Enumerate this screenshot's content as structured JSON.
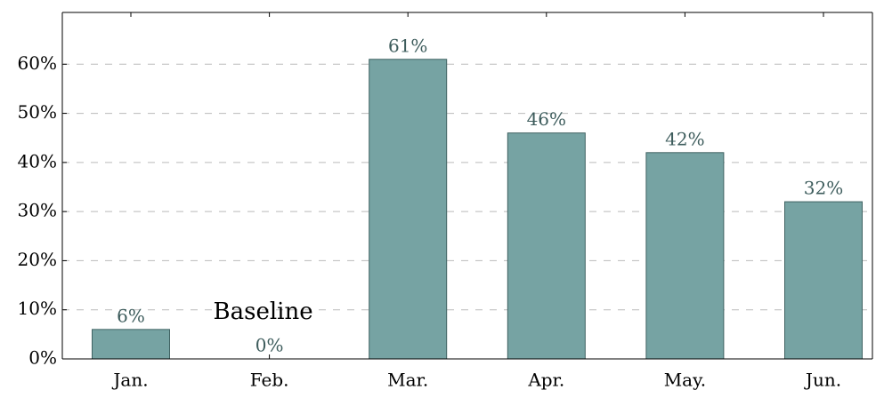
{
  "chart_data": {
    "type": "bar",
    "categories": [
      "Jan.",
      "Feb.",
      "Mar.",
      "Apr.",
      "May.",
      "Jun."
    ],
    "values": [
      6,
      0,
      61,
      46,
      42,
      32
    ],
    "value_labels": [
      "6%",
      "0%",
      "61%",
      "46%",
      "42%",
      "32%"
    ],
    "color": "#76a3a3",
    "ylim": [
      0,
      70
    ],
    "yticks": [
      {
        "value": 0,
        "label": "0%"
      },
      {
        "value": 10,
        "label": "10%"
      },
      {
        "value": 20,
        "label": "20%"
      },
      {
        "value": 30,
        "label": "30%"
      },
      {
        "value": 40,
        "label": "40%"
      },
      {
        "value": 50,
        "label": "50%"
      },
      {
        "value": 60,
        "label": "60%"
      }
    ],
    "grid": true,
    "annotations": [
      {
        "text": "Baseline",
        "category": 1
      }
    ]
  }
}
